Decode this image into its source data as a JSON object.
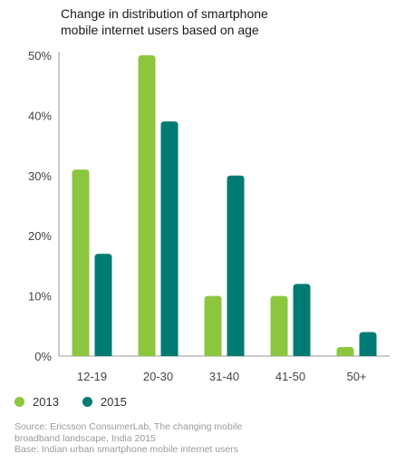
{
  "chart_data": {
    "type": "bar",
    "title_lines": [
      "Change in distribution of smartphone",
      "mobile internet users based on age"
    ],
    "categories": [
      "12-19",
      "20-30",
      "31-40",
      "41-50",
      "50+"
    ],
    "series": [
      {
        "name": "2013",
        "color": "#8cc63f",
        "values": [
          31,
          50,
          10,
          10,
          1.5
        ]
      },
      {
        "name": "2015",
        "color": "#007b73",
        "values": [
          17,
          39,
          30,
          12,
          4
        ]
      }
    ],
    "ylim": [
      0,
      50
    ],
    "yticks": [
      0,
      10,
      20,
      30,
      40,
      50
    ],
    "ytick_labels": [
      "0%",
      "10%",
      "20%",
      "30%",
      "40%",
      "50%"
    ],
    "legend_position": "bottom-left",
    "grid": false
  },
  "footnote": {
    "lines": [
      "Source: Ericsson ConsumerLab, The changing mobile",
      "broadband landscape, India 2015",
      "Base: Indian urban smartphone mobile internet users"
    ]
  }
}
